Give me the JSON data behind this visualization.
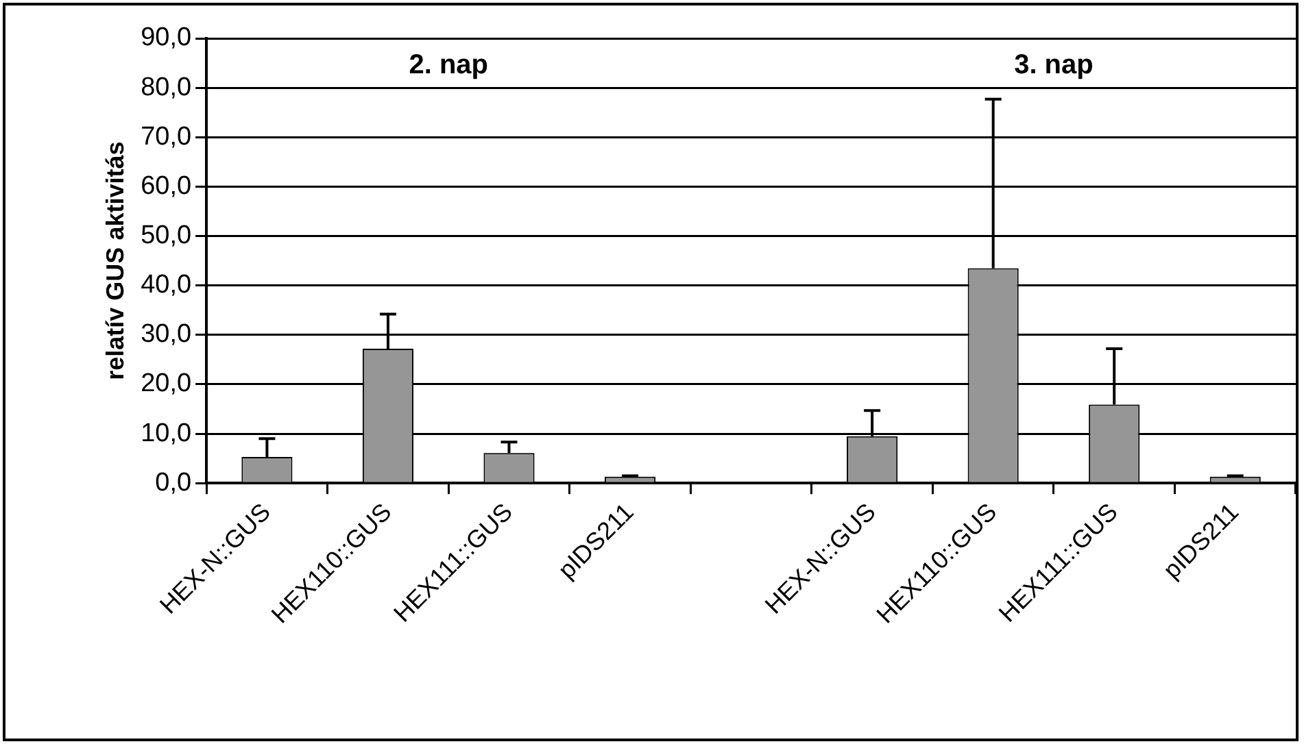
{
  "chart_data": {
    "type": "bar",
    "ylabel": "relatív GUS aktivitás",
    "categories": [
      "HEX-N::GUS",
      "HEX110::GUS",
      "HEX111::GUS",
      "pIDS211",
      null,
      "HEX-N::GUS",
      "HEX110::GUS",
      "HEX111::GUS",
      "pIDS211"
    ],
    "values": [
      5.3,
      27.2,
      6.1,
      1.3,
      null,
      9.5,
      43.5,
      15.9,
      1.3
    ],
    "errors": [
      [
        5.3,
        9.0
      ],
      [
        27.2,
        34.2
      ],
      [
        6.1,
        8.3
      ],
      [
        1.3,
        1.5
      ],
      null,
      [
        9.5,
        14.7
      ],
      [
        43.5,
        77.7
      ],
      [
        15.9,
        27.2
      ],
      [
        1.3,
        1.5
      ]
    ],
    "color": "#969696",
    "ylim": [
      0,
      90
    ],
    "yticks": [
      {
        "value": 0,
        "label": "0,0"
      },
      {
        "value": 10,
        "label": "10,0"
      },
      {
        "value": 20,
        "label": "20,0"
      },
      {
        "value": 30,
        "label": "30,0"
      },
      {
        "value": 40,
        "label": "40,0"
      },
      {
        "value": 50,
        "label": "50,0"
      },
      {
        "value": 60,
        "label": "60,0"
      },
      {
        "value": 70,
        "label": "70,0"
      },
      {
        "value": 80,
        "label": "80,0"
      },
      {
        "value": 90,
        "label": "90,0"
      }
    ],
    "annotations": [
      "2. nap",
      "3. nap"
    ],
    "grid": "y",
    "legend": false
  }
}
